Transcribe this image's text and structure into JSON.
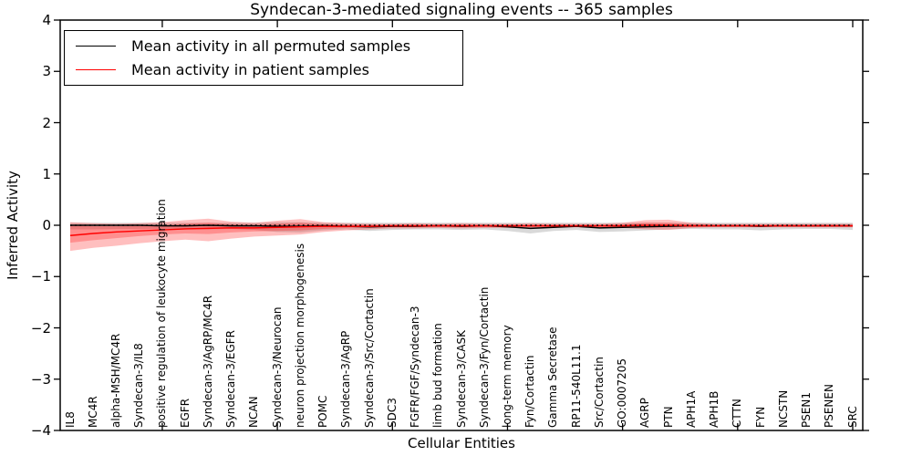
{
  "title": "Syndecan-3-mediated signaling events -- 365 samples",
  "axes": {
    "xlabel": "Cellular Entities",
    "ylabel": "Inferred Activity",
    "ytick_values": [
      4,
      3,
      2,
      1,
      0,
      -1,
      -2,
      -3,
      -4
    ],
    "ytick_labels": [
      "4",
      "3",
      "2",
      "1",
      "0",
      "−1",
      "−2",
      "−3",
      "−4"
    ],
    "top_tick_indices": [
      4,
      9,
      14,
      19,
      24,
      29,
      34
    ]
  },
  "legend": {
    "items": [
      {
        "label": "Mean activity in all permuted samples",
        "color": "#000000"
      },
      {
        "label": "Mean activity in patient samples",
        "color": "#ff0000"
      }
    ]
  },
  "chart_data": {
    "type": "line",
    "title": "Syndecan-3-mediated signaling events -- 365 samples",
    "xlabel": "Cellular Entities",
    "ylabel": "Inferred Activity",
    "ylim": [
      -4,
      4
    ],
    "grid": false,
    "legend_position": "upper left",
    "categories": [
      "IL8",
      "MC4R",
      "alpha-MSH/MC4R",
      "Syndecan-3/IL8",
      "positive regulation of leukocyte migration",
      "EGFR",
      "Syndecan-3/AgRP/MC4R",
      "Syndecan-3/EGFR",
      "NCAN",
      "Syndecan-3/Neurocan",
      "neuron projection morphogenesis",
      "POMC",
      "Syndecan-3/AgRP",
      "Syndecan-3/Src/Cortactin",
      "SDC3",
      "FGFR/FGF/Syndecan-3",
      "limb bud formation",
      "Syndecan-3/CASK",
      "Syndecan-3/Fyn/Cortactin",
      "long-term memory",
      "Fyn/Cortactin",
      "Gamma Secretase",
      "RP11-540L11.1",
      "Src/Cortactin",
      "GO:0007205",
      "AGRP",
      "PTN",
      "APH1A",
      "APH1B",
      "CTTN",
      "FYN",
      "NCSTN",
      "PSEN1",
      "PSENEN",
      "SRC"
    ],
    "series": [
      {
        "name": "Mean activity in all permuted samples",
        "color": "#000000",
        "style": "solid",
        "values": [
          0,
          0,
          0,
          0,
          -0.01,
          -0.01,
          0,
          -0.01,
          -0.01,
          -0.02,
          -0.02,
          -0.01,
          -0.02,
          -0.03,
          -0.02,
          -0.02,
          -0.01,
          -0.02,
          -0.01,
          -0.03,
          -0.06,
          -0.04,
          -0.02,
          -0.05,
          -0.04,
          -0.03,
          -0.02,
          -0.01,
          -0.01,
          -0.01,
          -0.02,
          -0.01,
          -0.01,
          -0.01,
          -0.01
        ]
      },
      {
        "name": "Mean activity in patient samples",
        "color": "#ff0000",
        "style": "solid",
        "values": [
          -0.2,
          -0.16,
          -0.13,
          -0.11,
          -0.09,
          -0.07,
          -0.06,
          -0.05,
          -0.05,
          -0.04,
          -0.03,
          -0.02,
          -0.02,
          -0.02,
          -0.01,
          -0.01,
          -0.01,
          -0.01,
          -0.01,
          -0.01,
          -0.01,
          -0.01,
          -0.01,
          -0.01,
          -0.01,
          0,
          0,
          -0.01,
          -0.01,
          -0.01,
          -0.01,
          -0.01,
          -0.01,
          -0.01,
          -0.01
        ]
      }
    ],
    "reference_lines": [
      {
        "value": 0,
        "style": "dotted",
        "color": "#000000"
      }
    ],
    "bands": [
      {
        "name": "permuted-samples-range",
        "color": "#000000",
        "opacity": 0.15,
        "upper": [
          0.05,
          0.05,
          0.05,
          0.05,
          0.05,
          0.05,
          0.05,
          0.05,
          0.05,
          0.06,
          0.06,
          0.05,
          0.05,
          0.05,
          0.05,
          0.05,
          0.05,
          0.05,
          0.05,
          0.05,
          0.05,
          0.05,
          0.05,
          0.05,
          0.05,
          0.05,
          0.05,
          0.05,
          0.05,
          0.05,
          0.05,
          0.05,
          0.05,
          0.05,
          0.05
        ],
        "lower": [
          -0.08,
          -0.08,
          -0.07,
          -0.07,
          -0.07,
          -0.07,
          -0.08,
          -0.07,
          -0.09,
          -0.13,
          -0.14,
          -0.1,
          -0.08,
          -0.11,
          -0.09,
          -0.08,
          -0.08,
          -0.09,
          -0.08,
          -0.11,
          -0.16,
          -0.11,
          -0.09,
          -0.13,
          -0.12,
          -0.1,
          -0.08,
          -0.07,
          -0.08,
          -0.08,
          -0.1,
          -0.08,
          -0.07,
          -0.07,
          -0.09
        ]
      },
      {
        "name": "patient-samples-range-outer",
        "color": "#ff0000",
        "opacity": 0.25,
        "upper": [
          0.06,
          0.04,
          0.03,
          0.04,
          0.06,
          0.1,
          0.13,
          0.07,
          0.05,
          0.09,
          0.12,
          0.06,
          0.04,
          0.03,
          0.03,
          0.04,
          0.03,
          0.04,
          0.03,
          0.03,
          0.04,
          0.03,
          0.03,
          0.03,
          0.05,
          0.1,
          0.11,
          0.05,
          0.03,
          0.03,
          0.03,
          0.03,
          0.03,
          0.03,
          0.03
        ],
        "lower": [
          -0.5,
          -0.44,
          -0.4,
          -0.35,
          -0.31,
          -0.28,
          -0.31,
          -0.26,
          -0.22,
          -0.2,
          -0.18,
          -0.13,
          -0.1,
          -0.08,
          -0.06,
          -0.06,
          -0.05,
          -0.06,
          -0.05,
          -0.05,
          -0.05,
          -0.04,
          -0.04,
          -0.04,
          -0.05,
          -0.08,
          -0.09,
          -0.05,
          -0.04,
          -0.04,
          -0.04,
          -0.04,
          -0.04,
          -0.04,
          -0.04
        ]
      },
      {
        "name": "patient-samples-range-inner",
        "color": "#ff0000",
        "opacity": 0.25,
        "upper": [
          0,
          -0.02,
          -0.02,
          -0.01,
          0,
          0.03,
          0.05,
          0.02,
          0.01,
          0.03,
          0.05,
          0.02,
          0.01,
          0.01,
          0.01,
          0.01,
          0.01,
          0.01,
          0.01,
          0.01,
          0.01,
          0.01,
          0.01,
          0.01,
          0.02,
          0.05,
          0.05,
          0.02,
          0.01,
          0.01,
          0.01,
          0.01,
          0.01,
          0.01,
          0.01
        ],
        "lower": [
          -0.34,
          -0.29,
          -0.25,
          -0.21,
          -0.18,
          -0.16,
          -0.17,
          -0.14,
          -0.12,
          -0.11,
          -0.1,
          -0.07,
          -0.05,
          -0.04,
          -0.03,
          -0.03,
          -0.03,
          -0.03,
          -0.03,
          -0.03,
          -0.03,
          -0.03,
          -0.03,
          -0.03,
          -0.03,
          -0.04,
          -0.04,
          -0.03,
          -0.02,
          -0.02,
          -0.02,
          -0.02,
          -0.02,
          -0.02,
          -0.02
        ]
      }
    ]
  }
}
